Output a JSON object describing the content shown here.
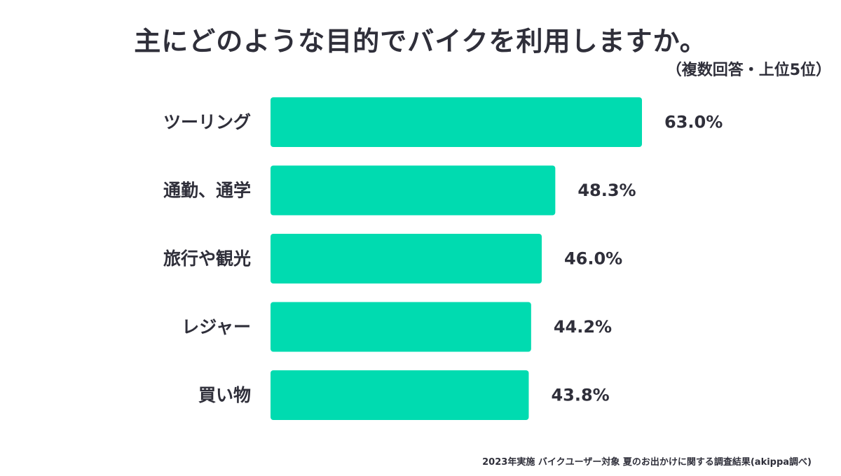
{
  "title": "主にどのような目的でバイクを利用しますか。",
  "subtitle": "（複数回答・上位5位）",
  "footer": "2023年実施 バイクユーザー対象 夏のお出かけに関する調査結果(akippa調べ)",
  "colors": {
    "bar": "#00dbb0",
    "text": "#2f2f3a"
  },
  "chart_data": {
    "type": "bar",
    "orientation": "horizontal",
    "categories": [
      "ツーリング",
      "通勤、通学",
      "旅行や観光",
      "レジャー",
      "買い物"
    ],
    "values": [
      63.0,
      48.3,
      46.0,
      44.2,
      43.8
    ],
    "value_labels": [
      "63.0%",
      "48.3%",
      "46.0%",
      "44.2%",
      "43.8%"
    ],
    "unit": "%",
    "xlim": [
      0,
      100
    ],
    "grid": false,
    "legend": "none"
  }
}
